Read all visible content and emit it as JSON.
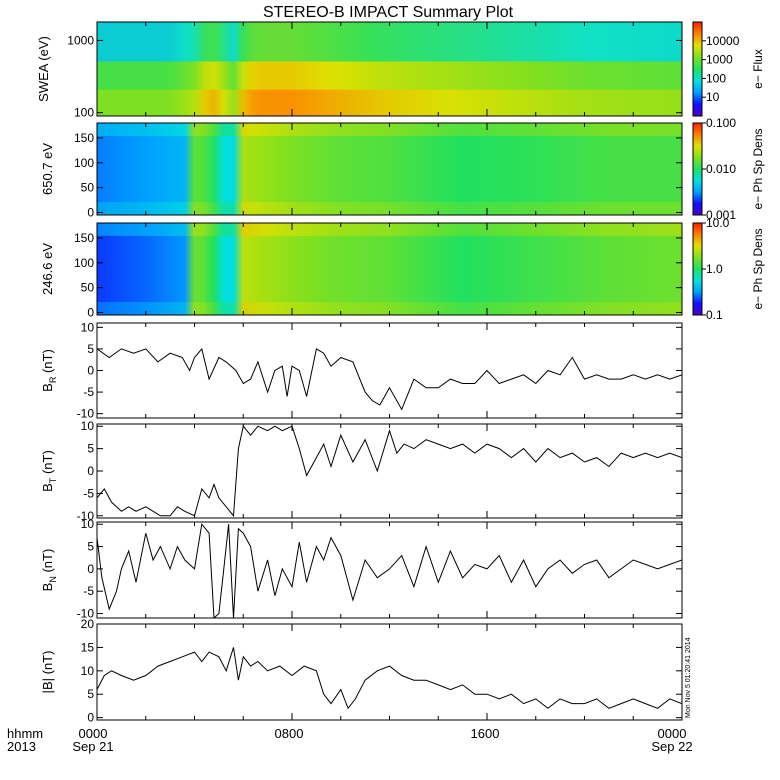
{
  "title": "STEREO-B IMPACT Summary Plot",
  "footer": {
    "row1_label": "hhmm",
    "row2_label": "2013",
    "time_ticks": [
      "0000",
      "0800",
      "1600",
      "0000"
    ],
    "date_ticks": [
      "Sep 21",
      "",
      "",
      "Sep 22"
    ],
    "stamp": "Mon Nov  5 01:20:41 2014"
  },
  "colors": {
    "colormap": [
      "#4b00c8",
      "#1010ff",
      "#00a0ff",
      "#00e0e0",
      "#20e060",
      "#80e020",
      "#e0e000",
      "#ff8000",
      "#ff2000"
    ],
    "line": "#000000"
  },
  "chart_data": [
    {
      "type": "heatmap",
      "ylabel": "SWEA (eV)",
      "yscale": "log",
      "ylim": [
        90,
        1800
      ],
      "yticks": [
        "1000",
        "100"
      ],
      "colorbar": {
        "label": "e− Flux",
        "scale": "log",
        "range": [
          1,
          100000
        ],
        "ticks": [
          "10000",
          "1000",
          "100",
          "10"
        ]
      },
      "x_range_hours": [
        0,
        24
      ],
      "profile_x": [
        0,
        3,
        4,
        4.5,
        5,
        5.5,
        6,
        6.5,
        8,
        10,
        12,
        16,
        20,
        24
      ],
      "profile_intensity": [
        0.55,
        0.55,
        0.62,
        0.72,
        0.74,
        0.55,
        0.72,
        0.78,
        0.78,
        0.74,
        0.7,
        0.65,
        0.6,
        0.58
      ]
    },
    {
      "type": "heatmap",
      "ylabel": "650.7 eV",
      "ylim": [
        -5,
        180
      ],
      "yticks": [
        "150",
        "100",
        "50",
        "0"
      ],
      "colorbar": {
        "label": "e− Ph Sp Dens",
        "scale": "log",
        "range": [
          0.001,
          0.1
        ],
        "ticks": [
          "0.100",
          "0.010",
          "0.001"
        ]
      },
      "x_range_hours": [
        0,
        24
      ],
      "profile_x": [
        0,
        2,
        3.9,
        4.0,
        4.6,
        5.2,
        5.3,
        5.8,
        6.0,
        8,
        10,
        12,
        15,
        18,
        21,
        24
      ],
      "profile_intensity": [
        0.22,
        0.25,
        0.3,
        0.58,
        0.55,
        0.38,
        0.32,
        0.4,
        0.68,
        0.62,
        0.58,
        0.56,
        0.5,
        0.52,
        0.55,
        0.55
      ]
    },
    {
      "type": "heatmap",
      "ylabel": "246.6 eV",
      "ylim": [
        -5,
        180
      ],
      "yticks": [
        "150",
        "100",
        "50",
        "0"
      ],
      "colorbar": {
        "label": "e− Ph Sp Dens",
        "scale": "log",
        "range": [
          0.1,
          10
        ],
        "ticks": [
          "10.0",
          "1.0",
          "0.1"
        ]
      },
      "x_range_hours": [
        0,
        24
      ],
      "profile_x": [
        0,
        2,
        3.9,
        4.0,
        4.6,
        5.2,
        5.3,
        5.8,
        6.0,
        8,
        10,
        12,
        15,
        18,
        21,
        24
      ],
      "profile_intensity": [
        0.16,
        0.2,
        0.25,
        0.6,
        0.56,
        0.38,
        0.3,
        0.42,
        0.7,
        0.64,
        0.6,
        0.58,
        0.5,
        0.54,
        0.58,
        0.6
      ]
    },
    {
      "type": "line",
      "ylabel_main": "B",
      "ylabel_sub": "R",
      "ylabel_unit": " (nT)",
      "ylim": [
        -11,
        11
      ],
      "yticks": [
        10,
        5,
        0,
        -5,
        -10
      ],
      "x": [
        0,
        0.5,
        1,
        1.5,
        2,
        2.5,
        3,
        3.5,
        3.8,
        4,
        4.3,
        4.6,
        5,
        5.3,
        5.7,
        6,
        6.3,
        6.6,
        7,
        7.3,
        7.6,
        7.8,
        8,
        8.3,
        8.6,
        9,
        9.3,
        9.6,
        10,
        10.5,
        11,
        11.3,
        11.6,
        12,
        12.5,
        13,
        13.5,
        14,
        14.5,
        15,
        15.5,
        16,
        16.5,
        17,
        17.5,
        18,
        18.5,
        19,
        19.5,
        20,
        20.5,
        21,
        21.5,
        22,
        22.5,
        23,
        23.5,
        24
      ],
      "y": [
        5,
        3,
        5,
        4,
        5,
        2,
        4,
        3,
        0,
        3,
        5,
        -2,
        3,
        2,
        0,
        -3,
        -2,
        2,
        -5,
        0,
        1,
        -6,
        1,
        0,
        -6,
        5,
        4,
        1,
        3,
        2,
        -5,
        -7,
        -8,
        -4,
        -9,
        -2,
        -4,
        -4,
        -2,
        -3,
        -3,
        0,
        -3,
        -2,
        -1,
        -3,
        0,
        -1,
        3,
        -2,
        -1,
        -2,
        -2,
        -1,
        -2,
        -1,
        -2,
        -1
      ]
    },
    {
      "type": "line",
      "ylabel_main": "B",
      "ylabel_sub": "T",
      "ylabel_unit": " (nT)",
      "ylim": [
        -10.5,
        10.5
      ],
      "yticks": [
        10,
        5,
        0,
        -5,
        -10
      ],
      "x": [
        0,
        0.3,
        0.6,
        1,
        1.3,
        1.6,
        2,
        2.3,
        2.6,
        3,
        3.3,
        3.6,
        4,
        4.3,
        4.6,
        4.8,
        5,
        5.3,
        5.6,
        5.8,
        6,
        6.3,
        6.6,
        7,
        7.3,
        7.6,
        8,
        8.3,
        8.6,
        9,
        9.3,
        9.6,
        10,
        10.5,
        11,
        11.5,
        12,
        12.3,
        12.6,
        13,
        13.5,
        14,
        14.5,
        15,
        15.5,
        16,
        16.5,
        17,
        17.5,
        18,
        18.5,
        19,
        19.5,
        20,
        20.5,
        21,
        21.5,
        22,
        22.5,
        23,
        23.5,
        24
      ],
      "y": [
        -6,
        -4,
        -7,
        -9,
        -8,
        -9,
        -8,
        -9,
        -10,
        -10,
        -8,
        -9,
        -10,
        -4,
        -6,
        -3,
        -6,
        -8,
        -10,
        5,
        10,
        8,
        10,
        9,
        10,
        9,
        10,
        5,
        -1,
        3,
        6,
        1,
        8,
        2,
        7,
        0,
        9,
        4,
        6,
        5,
        7,
        6,
        5,
        6,
        4,
        6,
        5,
        3,
        5,
        2,
        5,
        3,
        4,
        2,
        3,
        1,
        4,
        3,
        4,
        3,
        4,
        3
      ]
    },
    {
      "type": "line",
      "ylabel_main": "B",
      "ylabel_sub": "N",
      "ylabel_unit": " (nT)",
      "ylim": [
        -11,
        10.5
      ],
      "yticks": [
        10,
        5,
        0,
        -5,
        -10
      ],
      "x": [
        0,
        0.2,
        0.5,
        0.8,
        1,
        1.3,
        1.6,
        2,
        2.3,
        2.6,
        3,
        3.3,
        3.6,
        4,
        4.3,
        4.6,
        4.8,
        5,
        5.2,
        5.4,
        5.6,
        5.8,
        6,
        6.3,
        6.6,
        7,
        7.3,
        7.6,
        8,
        8.3,
        8.6,
        9,
        9.3,
        9.6,
        10,
        10.5,
        11,
        11.5,
        12,
        12.5,
        13,
        13.5,
        14,
        14.5,
        15,
        15.5,
        16,
        16.5,
        17,
        17.5,
        18,
        18.5,
        19,
        19.5,
        20,
        20.5,
        21,
        21.5,
        22,
        22.5,
        23,
        23.5,
        24
      ],
      "y": [
        7,
        -2,
        -9,
        -5,
        0,
        4,
        -3,
        8,
        2,
        5,
        0,
        5,
        2,
        0,
        10,
        8,
        -11,
        -10,
        0,
        10,
        -11,
        9,
        8,
        5,
        -5,
        2,
        -6,
        0,
        -4,
        6,
        -3,
        5,
        2,
        7,
        3,
        -7,
        2,
        -2,
        0,
        3,
        -4,
        5,
        -3,
        4,
        -2,
        1,
        0,
        3,
        -3,
        2,
        -4,
        0,
        2,
        -1,
        1,
        2,
        -2,
        0,
        2,
        1,
        0,
        1,
        2
      ]
    },
    {
      "type": "line",
      "ylabel_main": "|B|",
      "ylabel_sub": "",
      "ylabel_unit": " (nT)",
      "ylim": [
        -0.5,
        20
      ],
      "yticks": [
        20,
        15,
        10,
        5,
        0
      ],
      "x": [
        0,
        0.3,
        0.6,
        1,
        1.5,
        2,
        2.5,
        3,
        3.5,
        4,
        4.3,
        4.6,
        5,
        5.3,
        5.6,
        5.8,
        6,
        6.3,
        6.6,
        7,
        7.5,
        8,
        8.5,
        9,
        9.3,
        9.6,
        10,
        10.3,
        10.6,
        11,
        11.5,
        12,
        12.5,
        13,
        13.5,
        14,
        14.5,
        15,
        15.5,
        16,
        16.5,
        17,
        17.5,
        18,
        18.5,
        19,
        19.5,
        20,
        20.5,
        21,
        21.5,
        22,
        22.5,
        23,
        23.5,
        24
      ],
      "y": [
        6,
        9,
        10,
        9,
        8,
        9,
        11,
        12,
        13,
        14,
        12,
        14,
        13,
        10,
        15,
        8,
        13,
        11,
        12,
        10,
        11,
        9,
        11,
        10,
        5,
        3,
        6,
        2,
        4,
        8,
        10,
        11,
        9,
        8,
        8,
        7,
        6,
        7,
        5,
        5,
        4,
        5,
        3,
        4,
        2,
        4,
        3,
        3,
        4,
        2,
        3,
        4,
        3,
        2,
        4,
        3
      ]
    }
  ]
}
